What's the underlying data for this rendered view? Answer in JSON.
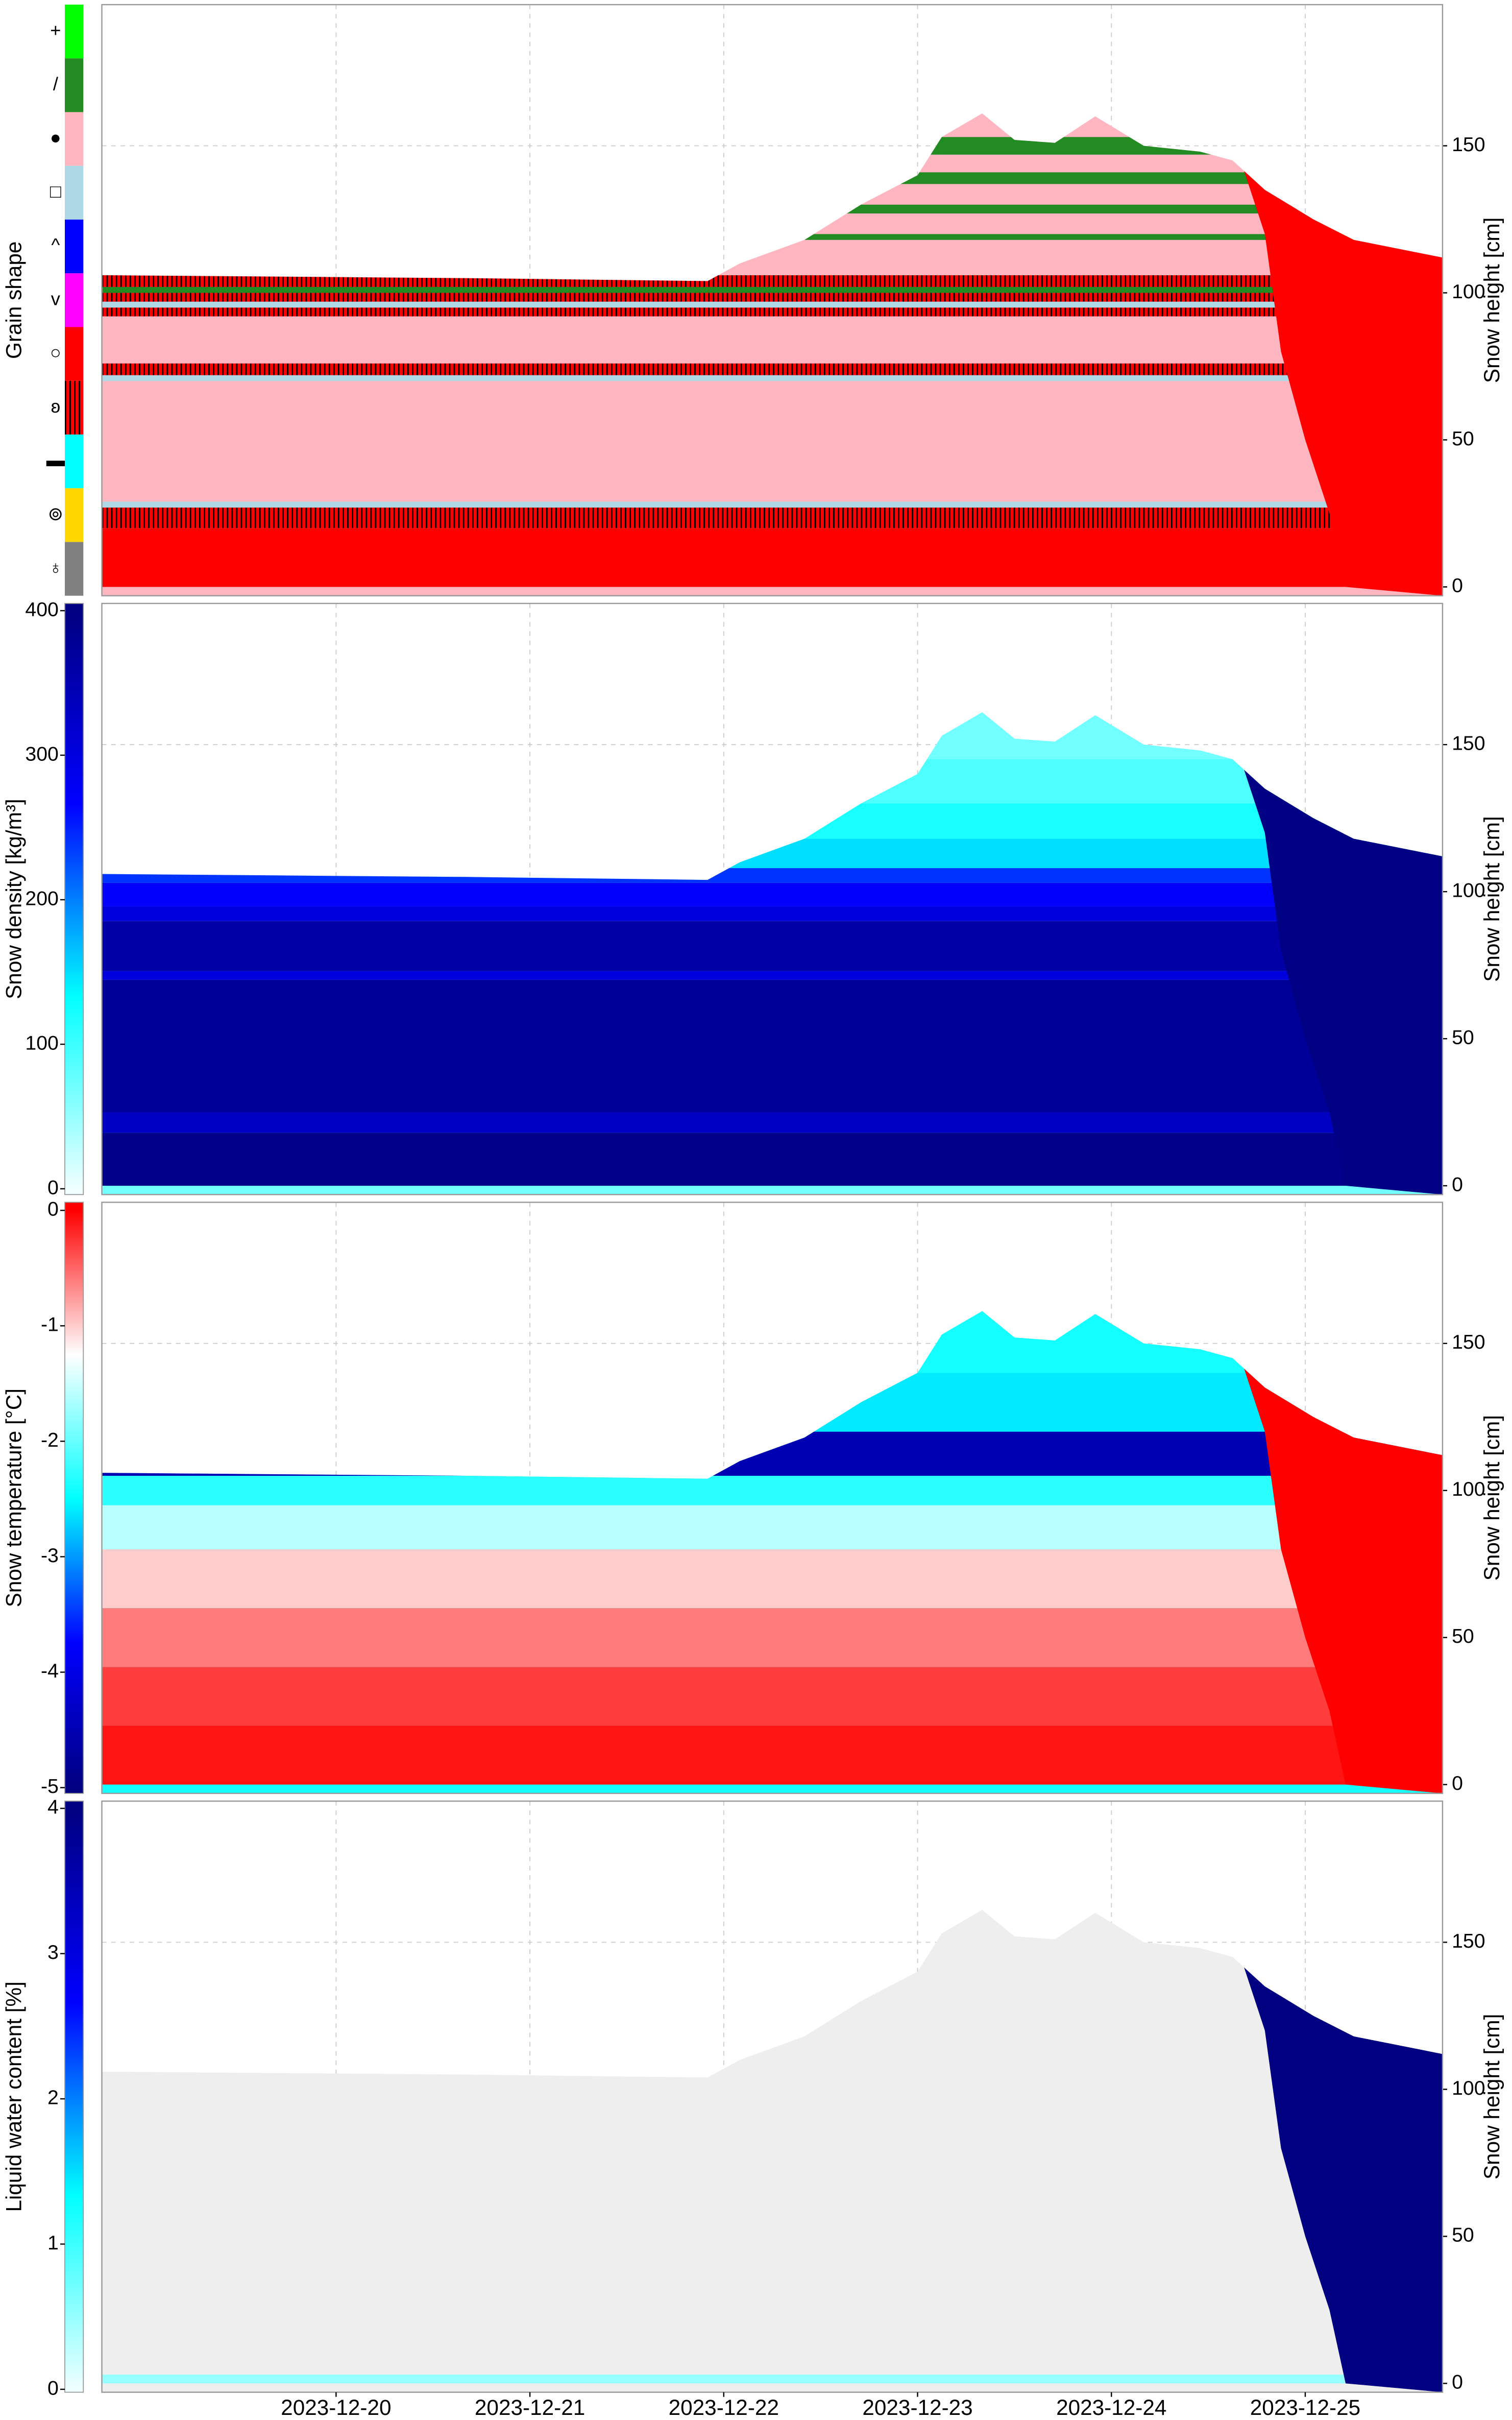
{
  "x_axis": {
    "xlim": [
      "2023-12-18T19:00",
      "2023-12-25T17:00"
    ],
    "xticks": [
      "2023-12-20",
      "2023-12-21",
      "2023-12-22",
      "2023-12-23",
      "2023-12-24",
      "2023-12-25"
    ],
    "grid": true
  },
  "snow_height": {
    "x": [
      "2023-12-18T19:00",
      "2023-12-20T16:00",
      "2023-12-21T22:00",
      "2023-12-22T02:00",
      "2023-12-22T10:00",
      "2023-12-22T17:00",
      "2023-12-23T00:00",
      "2023-12-23T03:00",
      "2023-12-23T08:00",
      "2023-12-23T12:00",
      "2023-12-23T17:00",
      "2023-12-23T22:00",
      "2023-12-24T04:00",
      "2023-12-24T11:00",
      "2023-12-24T15:00",
      "2023-12-24T19:00",
      "2023-12-25T01:00",
      "2023-12-25T06:00",
      "2023-12-25T17:00"
    ],
    "values": [
      106,
      105,
      104,
      110,
      118,
      130,
      140,
      153,
      161,
      152,
      151,
      160,
      150,
      148,
      145,
      135,
      125,
      118,
      112
    ]
  },
  "wet_front": {
    "x": [
      "2023-12-24T16:00",
      "2023-12-24T19:00",
      "2023-12-24T21:00",
      "2023-12-25T00:00",
      "2023-12-25T03:00",
      "2023-12-25T05:00"
    ],
    "values": [
      145,
      120,
      80,
      50,
      25,
      0
    ]
  },
  "chart_data": [
    {
      "type": "grain",
      "ylabel": "Grain shape",
      "y2label": "Snow height [cm]",
      "y2lim": [
        -3,
        198
      ],
      "y2ticks": [
        0,
        50,
        100,
        150
      ],
      "grid": true,
      "categories": [
        {
          "symbol": "+",
          "color": "#00ff00"
        },
        {
          "symbol": "/",
          "color": "#228b22"
        },
        {
          "symbol": "●",
          "color": "#ffb6c1"
        },
        {
          "symbol": "□",
          "color": "#add8e6"
        },
        {
          "symbol": "^",
          "color": "#0000ff"
        },
        {
          "symbol": "v",
          "color": "#ff00ff"
        },
        {
          "symbol": "○",
          "color": "#ff0000"
        },
        {
          "symbol": "ʚ",
          "color": "#ff0000",
          "hatch": true
        },
        {
          "symbol": "▬",
          "color": "#00ffff"
        },
        {
          "symbol": "⊚",
          "color": "#ffd700"
        },
        {
          "symbol": "♁",
          "color": "#808080"
        }
      ],
      "layers": [
        {
          "bottom": 0,
          "top": 20,
          "value": 6
        },
        {
          "bottom": 20,
          "top": 27,
          "value": 7
        },
        {
          "bottom": 27,
          "top": 29,
          "value": 3
        },
        {
          "bottom": 29,
          "top": 70,
          "value": 2
        },
        {
          "bottom": 70,
          "top": 72,
          "value": 3
        },
        {
          "bottom": 72,
          "top": 76,
          "value": 7
        },
        {
          "bottom": 76,
          "top": 92,
          "value": 2
        },
        {
          "bottom": 92,
          "top": 95,
          "value": 7
        },
        {
          "bottom": 95,
          "top": 97,
          "value": 3
        },
        {
          "bottom": 97,
          "top": 100,
          "value": 7
        },
        {
          "bottom": 100,
          "top": 102,
          "value": 1
        },
        {
          "bottom": 102,
          "top": 106,
          "value": 7
        },
        {
          "bottom": 106,
          "top": 118,
          "value": 2
        },
        {
          "bottom": 118,
          "top": 120,
          "value": 1
        },
        {
          "bottom": 120,
          "top": 127,
          "value": 2
        },
        {
          "bottom": 127,
          "top": 130,
          "value": 1
        },
        {
          "bottom": 130,
          "top": 137,
          "value": 2
        },
        {
          "bottom": 137,
          "top": 141,
          "value": 1
        },
        {
          "bottom": 141,
          "top": 147,
          "value": 2
        },
        {
          "bottom": 147,
          "top": 153,
          "value": 1
        },
        {
          "bottom": 153,
          "top": 200,
          "value": 2
        }
      ],
      "wet_value": 6
    },
    {
      "type": "density",
      "ylabel": "Snow density [kg/m³]",
      "y2label": "Snow height [cm]",
      "y2lim": [
        -3,
        198
      ],
      "y2ticks": [
        0,
        50,
        100,
        150
      ],
      "grid": true,
      "colorbar": {
        "lim": [
          -4,
          405
        ],
        "ticks": [
          0,
          100,
          200,
          300,
          400
        ],
        "colors": [
          "#f0ffff",
          "#00ffff",
          "#0000ff",
          "#000080"
        ]
      },
      "layers": [
        {
          "bottom": 0,
          "top": 18,
          "value": 390
        },
        {
          "bottom": 18,
          "top": 25,
          "value": 330
        },
        {
          "bottom": 25,
          "top": 70,
          "value": 375
        },
        {
          "bottom": 70,
          "top": 73,
          "value": 300
        },
        {
          "bottom": 73,
          "top": 90,
          "value": 360
        },
        {
          "bottom": 90,
          "top": 95,
          "value": 300
        },
        {
          "bottom": 95,
          "top": 103,
          "value": 270
        },
        {
          "bottom": 103,
          "top": 108,
          "value": 240
        },
        {
          "bottom": 108,
          "top": 118,
          "value": 150
        },
        {
          "bottom": 118,
          "top": 130,
          "value": 120
        },
        {
          "bottom": 130,
          "top": 145,
          "value": 90
        },
        {
          "bottom": 145,
          "top": 200,
          "value": 70
        }
      ],
      "wet_value": 395
    },
    {
      "type": "temperature",
      "ylabel": "Snow temperature [°C]",
      "y2label": "Snow height [cm]",
      "y2lim": [
        -3,
        198
      ],
      "y2ticks": [
        0,
        50,
        100,
        150
      ],
      "grid": true,
      "colorbar": {
        "lim": [
          -5.05,
          0.07
        ],
        "ticks": [
          0,
          -1,
          -2,
          -3,
          -4,
          -5
        ],
        "colors": [
          "#000080",
          "#0000ff",
          "#00ffff",
          "#ffffff",
          "#ff0000"
        ]
      },
      "layers": [
        {
          "bottom": 0,
          "top": 20,
          "value": -0.1
        },
        {
          "bottom": 20,
          "top": 40,
          "value": -0.3
        },
        {
          "bottom": 40,
          "top": 60,
          "value": -0.6
        },
        {
          "bottom": 60,
          "top": 80,
          "value": -1.0
        },
        {
          "bottom": 80,
          "top": 95,
          "value": -1.6
        },
        {
          "bottom": 95,
          "top": 105,
          "value": -2.3
        },
        {
          "bottom": 105,
          "top": 120,
          "value": -4.5
        },
        {
          "bottom": 120,
          "top": 140,
          "value": -2.6
        },
        {
          "bottom": 140,
          "top": 200,
          "value": -2.4
        }
      ],
      "wet_value": 0
    },
    {
      "type": "lwc",
      "ylabel": "Liquid water content [%]",
      "y2label": "Snow height [cm]",
      "y2lim": [
        -3,
        198
      ],
      "y2ticks": [
        0,
        50,
        100,
        150
      ],
      "grid": true,
      "colorbar": {
        "lim": [
          -0.02,
          4.05
        ],
        "ticks": [
          0,
          1,
          2,
          3,
          4
        ],
        "colors": [
          "#f0ffff",
          "#00ffff",
          "#0000ff",
          "#000080"
        ]
      },
      "zero_color": "#eeeeee",
      "layers": [
        {
          "bottom": 0,
          "top": 3,
          "value": 0.5
        },
        {
          "bottom": 3,
          "top": 200,
          "value": 0
        }
      ],
      "wet_value": 4
    }
  ]
}
